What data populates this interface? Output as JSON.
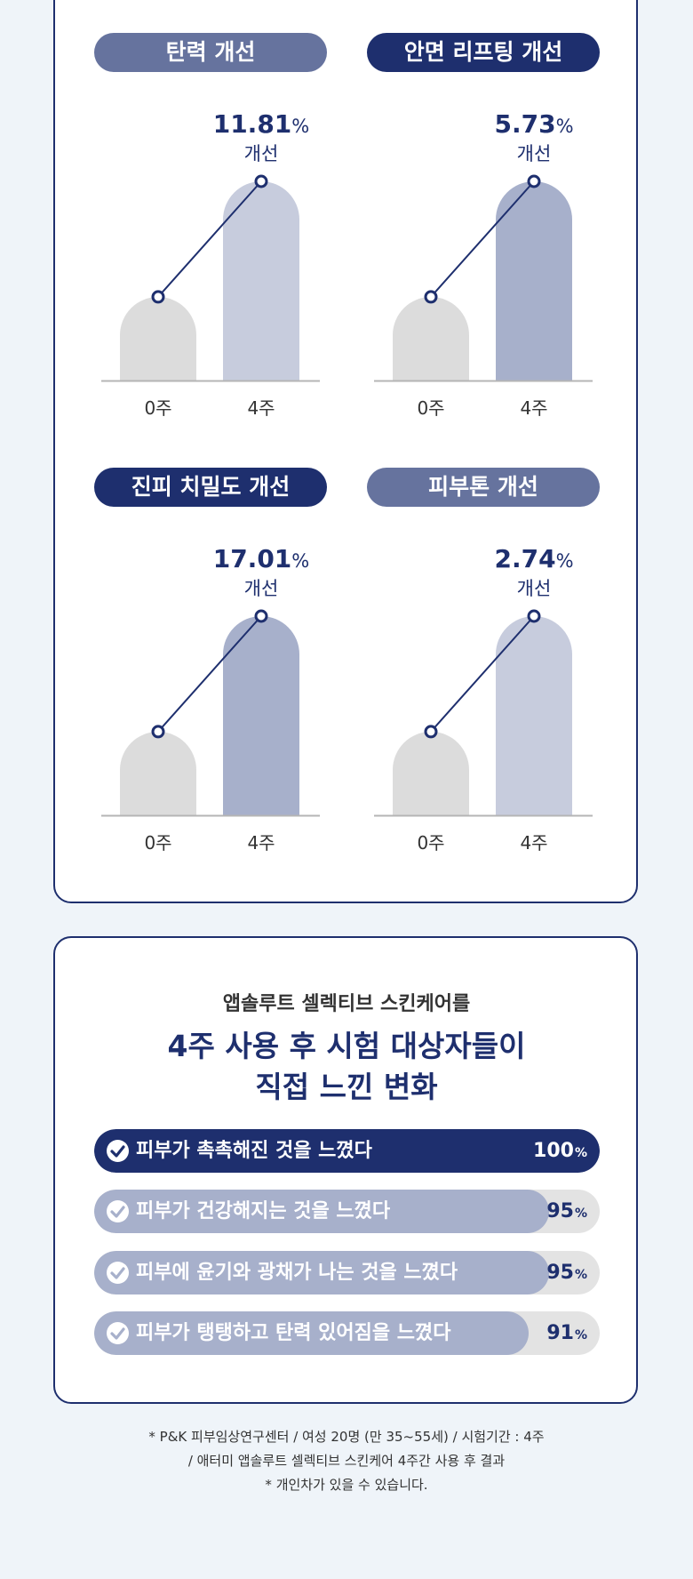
{
  "chart_data": [
    {
      "type": "bar",
      "title": "탄력 개선",
      "categories": [
        "0주",
        "4주"
      ],
      "values": [
        42,
        100
      ],
      "annotation_value": "11.81",
      "annotation_unit": "%",
      "annotation_text": "개선",
      "title_color": "#66739e",
      "after_bar_color": "#c7ccdd"
    },
    {
      "type": "bar",
      "title": "안면 리프팅 개선",
      "categories": [
        "0주",
        "4주"
      ],
      "values": [
        42,
        100
      ],
      "annotation_value": "5.73",
      "annotation_unit": "%",
      "annotation_text": "개선",
      "title_color": "#1e2f6e",
      "after_bar_color": "#a7b0cb"
    },
    {
      "type": "bar",
      "title": "진피 치밀도 개선",
      "categories": [
        "0주",
        "4주"
      ],
      "values": [
        42,
        100
      ],
      "annotation_value": "17.01",
      "annotation_unit": "%",
      "annotation_text": "개선",
      "title_color": "#1e2f6e",
      "after_bar_color": "#a7b0cb"
    },
    {
      "type": "bar",
      "title": "피부톤 개선",
      "categories": [
        "0주",
        "4주"
      ],
      "values": [
        42,
        100
      ],
      "annotation_value": "2.74",
      "annotation_unit": "%",
      "annotation_text": "개선",
      "title_color": "#66739e",
      "after_bar_color": "#c7ccdd"
    }
  ],
  "survey": {
    "intro": "앱솔루트 셀렉티브 스킨케어를",
    "headline_1": "4주 사용 후 시험 대상자들이",
    "headline_2": "직접 느낀 변화",
    "items": [
      {
        "label": "피부가 촉촉해진 것을 느꼈다",
        "value": 100,
        "unit": "%",
        "color": "#1e2f6e"
      },
      {
        "label": "피부가 건강해지는 것을 느꼈다",
        "value": 95,
        "unit": "%",
        "color": "#a7b0cb"
      },
      {
        "label": "피부에 윤기와 광채가 나는 것을 느꼈다",
        "value": 95,
        "unit": "%",
        "color": "#a7b0cb"
      },
      {
        "label": "피부가 탱탱하고 탄력 있어짐을 느꼈다",
        "value": 91,
        "unit": "%",
        "color": "#a7b0cb"
      }
    ]
  },
  "colors": {
    "navy": "#1e2f6e",
    "before_bar": "#dcdcdc",
    "bar_track": "#e3e3e3"
  },
  "footnote": {
    "line1": "* P&K 피부임상연구센터 / 여성 20명 (만 35~55세) / 시험기간 : 4주",
    "line2": "/ 애터미 앱솔루트 셀렉티브 스킨케어 4주간 사용 후 결과",
    "line3": "* 개인차가 있을 수 있습니다."
  }
}
